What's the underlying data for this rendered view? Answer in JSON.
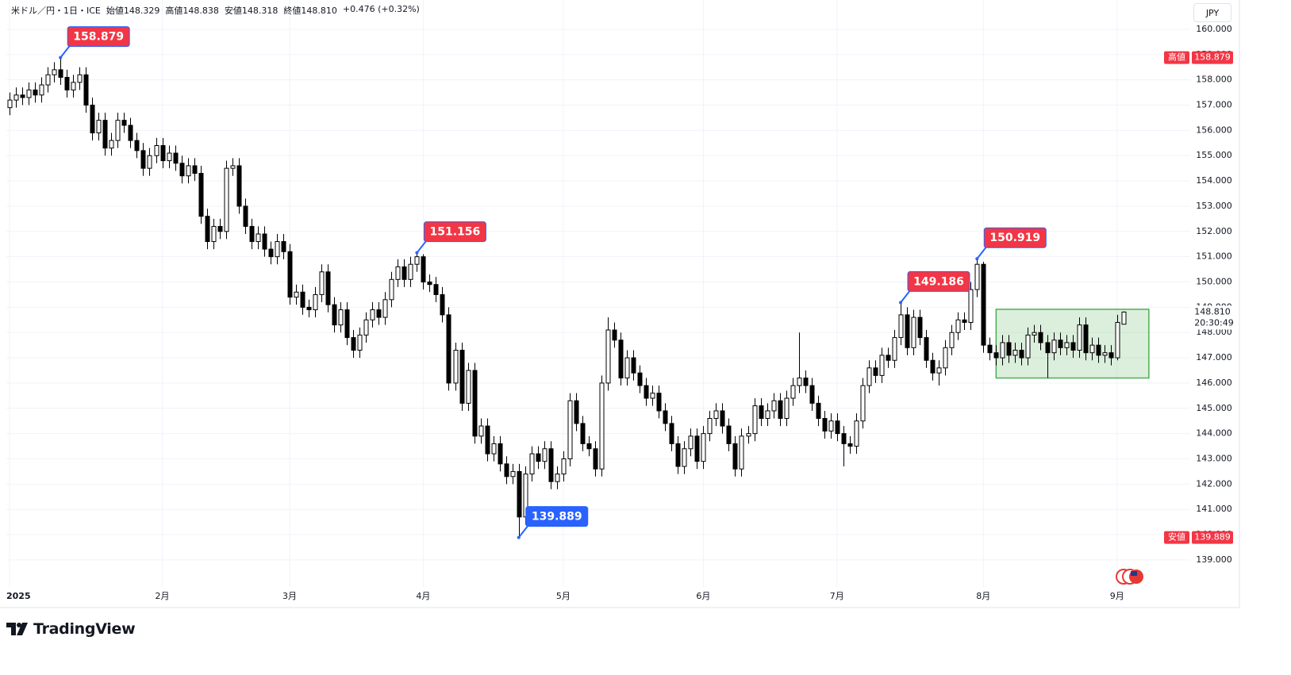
{
  "header": {
    "symbol": "米ドル／円・1日・ICE",
    "open": "始値148.329",
    "high": "高値148.838",
    "low": "安値148.318",
    "close": "終値148.810",
    "change": "+0.476 (+0.32%)"
  },
  "currency": "JPY",
  "logo": "TradingView",
  "chart_data": {
    "type": "candlestick",
    "up_color": "#ffffff",
    "down_color": "#000000",
    "wick_color": "#000000",
    "xlim": [
      -0.5,
      185.5
    ],
    "ylim": [
      137.93,
      161.16
    ],
    "grid": true,
    "xticks": [
      {
        "value": 0,
        "label": "2025"
      },
      {
        "value": 24,
        "label": "2月"
      },
      {
        "value": 44,
        "label": "3月"
      },
      {
        "value": 65,
        "label": "4月"
      },
      {
        "value": 87,
        "label": "5月"
      },
      {
        "value": 109,
        "label": "6月"
      },
      {
        "value": 130,
        "label": "7月"
      },
      {
        "value": 153,
        "label": "8月"
      },
      {
        "value": 174,
        "label": "9月"
      }
    ],
    "yticks": [
      {
        "value": 139,
        "label": "139.000"
      },
      {
        "value": 140,
        "label": "140.000"
      },
      {
        "value": 141,
        "label": "141.000"
      },
      {
        "value": 142,
        "label": "142.000"
      },
      {
        "value": 143,
        "label": "143.000"
      },
      {
        "value": 144,
        "label": "144.000"
      },
      {
        "value": 145,
        "label": "145.000"
      },
      {
        "value": 146,
        "label": "146.000"
      },
      {
        "value": 147,
        "label": "147.000"
      },
      {
        "value": 148,
        "label": "148.000"
      },
      {
        "value": 149,
        "label": "149.000"
      },
      {
        "value": 150,
        "label": "150.000"
      },
      {
        "value": 151,
        "label": "151.000"
      },
      {
        "value": 152,
        "label": "152.000"
      },
      {
        "value": 153,
        "label": "153.000"
      },
      {
        "value": 154,
        "label": "154.000"
      },
      {
        "value": 155,
        "label": "155.000"
      },
      {
        "value": 156,
        "label": "156.000"
      },
      {
        "value": 157,
        "label": "157.000"
      },
      {
        "value": 158,
        "label": "158.000"
      },
      {
        "value": 159,
        "label": "159.000"
      },
      {
        "value": 160,
        "label": "160.000"
      }
    ],
    "open": [
      156.9,
      157.2,
      157.4,
      157.3,
      157.6,
      157.4,
      157.8,
      158.2,
      158.4,
      158.1,
      157.6,
      157.9,
      158.2,
      157.0,
      155.9,
      156.4,
      155.3,
      155.6,
      156.4,
      156.2,
      155.6,
      155.2,
      154.5,
      155.0,
      155.4,
      154.8,
      155.1,
      154.7,
      154.2,
      154.6,
      154.3,
      152.6,
      151.6,
      152.2,
      152.0,
      154.5,
      154.6,
      153.0,
      152.2,
      151.6,
      151.9,
      151.3,
      151.0,
      151.6,
      151.2,
      149.4,
      149.6,
      149.0,
      148.9,
      149.5,
      150.4,
      149.1,
      148.3,
      148.9,
      147.8,
      147.3,
      147.9,
      148.5,
      148.9,
      148.6,
      149.3,
      150.1,
      150.6,
      150.1,
      150.7,
      151.0,
      150.0,
      149.9,
      149.5,
      148.7,
      146.0,
      147.3,
      145.2,
      146.5,
      143.9,
      144.3,
      143.2,
      143.6,
      142.8,
      142.3,
      142.5,
      140.7,
      142.4,
      143.2,
      142.9,
      143.4,
      142.1,
      142.4,
      143.0,
      145.3,
      144.4,
      143.6,
      143.4,
      142.6,
      146.0,
      148.1,
      147.7,
      146.2,
      147.0,
      146.4,
      145.9,
      145.4,
      145.6,
      144.9,
      144.4,
      143.6,
      142.7,
      143.4,
      143.9,
      142.9,
      144.0,
      144.6,
      144.9,
      144.3,
      143.6,
      142.6,
      143.9,
      144.0,
      145.1,
      144.6,
      144.9,
      145.3,
      144.6,
      145.4,
      145.9,
      146.2,
      145.9,
      145.2,
      144.6,
      144.1,
      144.5,
      144.0,
      143.6,
      143.5,
      144.5,
      145.9,
      146.6,
      146.3,
      147.1,
      146.9,
      147.8,
      148.7,
      147.4,
      148.6,
      147.8,
      146.9,
      146.4,
      146.6,
      147.4,
      148.0,
      148.5,
      148.4,
      149.7,
      150.7,
      147.5,
      147.2,
      147.0,
      147.6,
      147.1,
      147.3,
      147.0,
      147.9,
      148.0,
      147.6,
      147.2,
      147.7,
      147.4,
      147.6,
      147.3,
      148.3,
      147.2,
      147.5,
      147.1,
      147.2,
      147.0,
      148.329
    ],
    "high": [
      157.5,
      157.7,
      157.7,
      157.9,
      157.9,
      158.1,
      158.5,
      158.7,
      158.879,
      158.4,
      158.2,
      158.5,
      158.5,
      157.3,
      156.7,
      156.7,
      155.9,
      156.7,
      156.7,
      156.5,
      155.9,
      155.5,
      155.3,
      155.7,
      155.7,
      155.4,
      155.4,
      155.0,
      154.9,
      154.9,
      154.6,
      152.9,
      152.5,
      152.5,
      154.8,
      154.9,
      154.9,
      153.3,
      152.5,
      152.2,
      152.2,
      151.6,
      151.9,
      151.9,
      151.5,
      149.9,
      149.9,
      149.3,
      149.8,
      150.7,
      150.7,
      149.4,
      149.2,
      149.2,
      148.1,
      148.2,
      148.8,
      149.2,
      149.2,
      149.6,
      150.4,
      150.9,
      150.9,
      151.0,
      151.156,
      151.1,
      150.3,
      150.2,
      149.8,
      149.0,
      147.6,
      147.6,
      146.8,
      146.8,
      144.6,
      144.6,
      143.9,
      143.9,
      143.1,
      142.8,
      142.8,
      142.7,
      143.5,
      143.5,
      143.7,
      143.7,
      142.7,
      143.3,
      145.6,
      145.6,
      144.7,
      143.9,
      143.7,
      146.3,
      148.6,
      148.4,
      148.0,
      147.3,
      147.3,
      146.7,
      146.2,
      145.9,
      145.9,
      145.2,
      144.7,
      143.9,
      143.7,
      144.2,
      144.2,
      144.3,
      144.9,
      145.2,
      145.2,
      144.6,
      143.9,
      144.2,
      144.3,
      145.4,
      145.4,
      145.2,
      145.6,
      145.6,
      145.7,
      146.2,
      148.0,
      146.5,
      146.2,
      145.5,
      144.9,
      144.8,
      144.8,
      144.3,
      143.9,
      144.8,
      146.2,
      146.9,
      146.9,
      147.4,
      147.4,
      148.1,
      149.186,
      149.0,
      148.9,
      148.9,
      148.1,
      147.2,
      146.9,
      147.7,
      148.3,
      148.8,
      148.8,
      150.0,
      150.919,
      150.8,
      147.8,
      147.5,
      147.9,
      147.9,
      147.6,
      147.6,
      148.2,
      148.3,
      148.3,
      147.9,
      148.0,
      148.0,
      147.9,
      147.9,
      148.6,
      148.6,
      147.8,
      147.8,
      147.5,
      147.5,
      148.7,
      148.838
    ],
    "low": [
      156.6,
      156.9,
      157.0,
      157.0,
      157.1,
      157.1,
      157.5,
      157.9,
      157.8,
      157.3,
      157.3,
      157.6,
      156.7,
      155.6,
      155.6,
      155.0,
      155.0,
      155.3,
      155.9,
      155.3,
      154.9,
      154.2,
      154.2,
      154.7,
      154.5,
      154.5,
      154.4,
      153.9,
      153.9,
      154.0,
      152.3,
      151.3,
      151.3,
      151.7,
      151.7,
      154.2,
      152.7,
      151.9,
      151.3,
      151.3,
      151.0,
      150.7,
      150.7,
      150.9,
      149.1,
      149.1,
      148.7,
      148.6,
      148.6,
      149.2,
      148.8,
      148.0,
      148.0,
      147.5,
      147.0,
      147.0,
      147.6,
      148.2,
      148.3,
      148.3,
      149.0,
      149.8,
      149.8,
      149.8,
      150.4,
      149.7,
      149.6,
      149.2,
      148.4,
      145.7,
      145.7,
      144.9,
      144.9,
      143.6,
      143.6,
      142.9,
      142.9,
      142.5,
      142.0,
      142.0,
      139.889,
      140.4,
      142.1,
      142.6,
      142.6,
      141.8,
      141.8,
      142.1,
      142.7,
      144.1,
      143.3,
      143.1,
      142.3,
      142.3,
      145.7,
      147.4,
      145.9,
      145.9,
      146.1,
      145.6,
      145.1,
      145.1,
      144.6,
      144.1,
      143.3,
      142.4,
      142.4,
      143.1,
      142.6,
      142.6,
      143.7,
      144.3,
      144.0,
      143.3,
      142.3,
      142.3,
      143.6,
      143.7,
      144.3,
      144.3,
      144.6,
      144.3,
      144.3,
      145.1,
      145.6,
      145.6,
      144.9,
      144.3,
      143.8,
      143.8,
      143.7,
      142.7,
      143.2,
      143.2,
      144.2,
      145.6,
      146.0,
      146.0,
      146.6,
      146.6,
      147.5,
      147.1,
      147.1,
      147.5,
      146.6,
      146.1,
      145.9,
      146.3,
      147.1,
      147.7,
      148.1,
      148.1,
      149.4,
      147.2,
      146.9,
      146.7,
      146.7,
      146.8,
      146.8,
      146.7,
      146.7,
      147.6,
      147.3,
      146.2,
      146.9,
      147.1,
      147.1,
      147.0,
      147.0,
      146.9,
      146.9,
      146.8,
      146.8,
      146.7,
      146.9,
      148.318
    ],
    "close": [
      157.2,
      157.4,
      157.3,
      157.6,
      157.4,
      157.8,
      158.2,
      158.4,
      158.1,
      157.6,
      157.9,
      158.2,
      157.0,
      155.9,
      156.4,
      155.3,
      155.6,
      156.4,
      156.2,
      155.6,
      155.2,
      154.5,
      155.0,
      155.4,
      154.8,
      155.1,
      154.7,
      154.2,
      154.6,
      154.3,
      152.6,
      151.6,
      152.2,
      152.0,
      154.5,
      154.6,
      153.0,
      152.2,
      151.6,
      151.9,
      151.3,
      151.0,
      151.6,
      151.2,
      149.4,
      149.6,
      149.0,
      148.9,
      149.5,
      150.4,
      149.1,
      148.3,
      148.9,
      147.8,
      147.3,
      147.9,
      148.5,
      148.9,
      148.6,
      149.3,
      150.1,
      150.6,
      150.1,
      150.7,
      151.0,
      150.0,
      149.9,
      149.5,
      148.7,
      146.0,
      147.3,
      145.2,
      146.5,
      143.9,
      144.3,
      143.2,
      143.6,
      142.8,
      142.3,
      142.5,
      140.7,
      142.4,
      143.2,
      142.9,
      143.4,
      142.1,
      142.4,
      143.0,
      145.3,
      144.4,
      143.6,
      143.4,
      142.6,
      146.0,
      148.1,
      147.7,
      146.2,
      147.0,
      146.4,
      145.9,
      145.4,
      145.6,
      144.9,
      144.4,
      143.6,
      142.7,
      143.4,
      143.9,
      142.9,
      144.0,
      144.6,
      144.9,
      144.3,
      143.6,
      142.6,
      143.9,
      144.0,
      145.1,
      144.6,
      144.9,
      145.3,
      144.6,
      145.4,
      145.9,
      146.2,
      145.9,
      145.2,
      144.6,
      144.1,
      144.5,
      144.0,
      143.6,
      143.5,
      144.5,
      145.9,
      146.6,
      146.3,
      147.1,
      146.9,
      147.8,
      148.7,
      147.4,
      148.6,
      147.8,
      146.9,
      146.4,
      146.6,
      147.4,
      148.0,
      148.5,
      148.4,
      149.7,
      150.7,
      147.5,
      147.2,
      147.0,
      147.6,
      147.1,
      147.3,
      147.0,
      147.9,
      148.0,
      147.6,
      147.2,
      147.7,
      147.4,
      147.6,
      147.3,
      148.3,
      147.2,
      147.5,
      147.1,
      147.2,
      147.0,
      148.4,
      148.81
    ],
    "annotations": [
      {
        "index": 8,
        "value": 158.879,
        "color": "#f23645"
      },
      {
        "index": 64,
        "value": 151.156,
        "color": "#f23645"
      },
      {
        "index": 140,
        "value": 149.186,
        "color": "#f23645"
      },
      {
        "index": 152,
        "value": 150.919,
        "color": "#f23645"
      },
      {
        "index": 80,
        "value": 139.889,
        "color": "#2962ff"
      }
    ],
    "range_box": {
      "from": 155,
      "to": 179,
      "top": 148.92,
      "bottom": 146.2,
      "color": "#4caf50"
    },
    "high_marker": {
      "label": "高値",
      "value": 158.879,
      "color": "#f23645"
    },
    "low_marker": {
      "label": "安値",
      "value": 139.889,
      "color": "#f23645"
    },
    "last_price": {
      "value": 148.81,
      "label": "148.810",
      "countdown": "20:30:49"
    }
  }
}
